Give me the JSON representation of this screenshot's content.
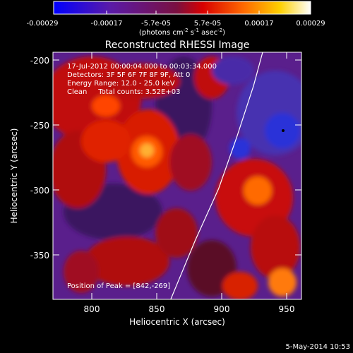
{
  "colorbar": {
    "tick_labels": [
      "-0.00029",
      "-0.00017",
      "-5.7e-05",
      "5.7e-05",
      "0.00017",
      "0.00029"
    ],
    "tick_values": [
      -0.00029,
      -0.00017,
      -5.7e-05,
      5.7e-05,
      0.00017,
      0.00029
    ],
    "range": [
      -0.00029,
      0.00029
    ],
    "units_prefix": "(photons cm",
    "units_exp1": "-2",
    "units_mid": " s",
    "units_exp2": "-1",
    "units_mid2": " asec",
    "units_exp3": "-2",
    "units_suffix": ")"
  },
  "chart_data": {
    "type": "heatmap",
    "title": "Reconstructed RHESSI Image",
    "xlabel": "Heliocentric X (arcsec)",
    "ylabel": "Heliocentric Y (arcsec)",
    "xlim": [
      770,
      962
    ],
    "ylim": [
      -386,
      -194
    ],
    "x_ticks": [
      800,
      850,
      900,
      950
    ],
    "y_ticks": [
      -200,
      -250,
      -300,
      -350
    ],
    "x_tick_labels": [
      "800",
      "850",
      "900",
      "950"
    ],
    "y_tick_labels": [
      "-200",
      "-250",
      "-300",
      "-350"
    ],
    "annotations": [
      "17-Jul-2012 00:00:04.000 to 00:03:34.000",
      "Detectors: 3F 5F 6F 7F 8F 9F, Att 0",
      "Energy Range: 12.0 - 25.0 keV",
      "Clean     Total counts: 3.52E+03"
    ],
    "peak_label": "Position of Peak = [842,-269]",
    "peak_position": [
      842,
      -269
    ],
    "colormap": "blue-purple-red-yellow-white",
    "limb_curve": [
      [
        861,
        -386
      ],
      [
        880,
        -340
      ],
      [
        898,
        -300
      ],
      [
        912,
        -260
      ],
      [
        925,
        -220
      ],
      [
        932,
        -194
      ]
    ]
  },
  "footer": {
    "date": "5-May-2014 10:53"
  }
}
